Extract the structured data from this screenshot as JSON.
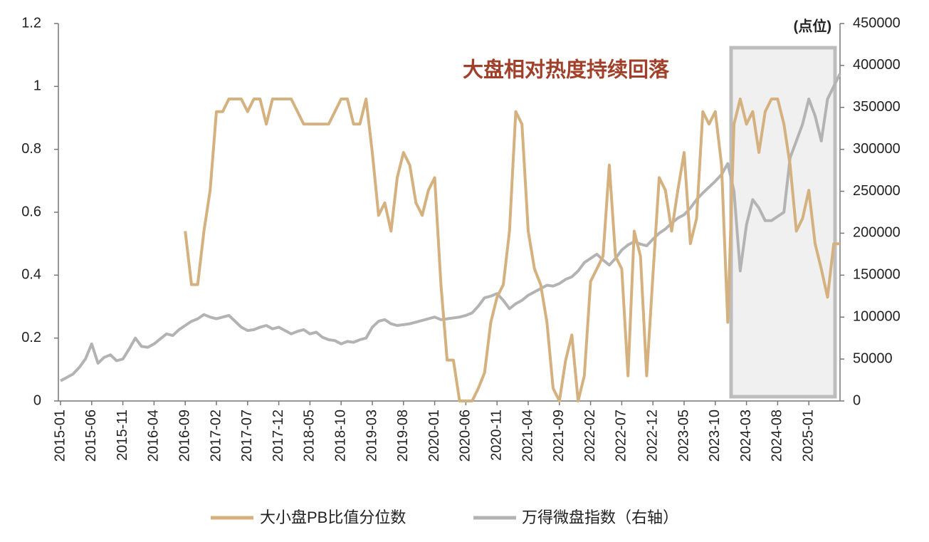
{
  "chart_data": {
    "type": "line",
    "annotation": "大盘相对热度持续回落",
    "y2_label": "(点位)",
    "x": [
      "2015-01",
      "2015-02",
      "2015-03",
      "2015-04",
      "2015-05",
      "2015-06",
      "2015-07",
      "2015-08",
      "2015-09",
      "2015-10",
      "2015-11",
      "2015-12",
      "2016-01",
      "2016-02",
      "2016-03",
      "2016-04",
      "2016-05",
      "2016-06",
      "2016-07",
      "2016-08",
      "2016-09",
      "2016-10",
      "2016-11",
      "2016-12",
      "2017-01",
      "2017-02",
      "2017-03",
      "2017-04",
      "2017-05",
      "2017-06",
      "2017-07",
      "2017-08",
      "2017-09",
      "2017-10",
      "2017-11",
      "2017-12",
      "2018-01",
      "2018-02",
      "2018-03",
      "2018-04",
      "2018-05",
      "2018-06",
      "2018-07",
      "2018-08",
      "2018-09",
      "2018-10",
      "2018-11",
      "2018-12",
      "2019-01",
      "2019-02",
      "2019-03",
      "2019-04",
      "2019-05",
      "2019-06",
      "2019-07",
      "2019-08",
      "2019-09",
      "2019-10",
      "2019-11",
      "2019-12",
      "2020-01",
      "2020-02",
      "2020-03",
      "2020-04",
      "2020-05",
      "2020-06",
      "2020-07",
      "2020-08",
      "2020-09",
      "2020-10",
      "2020-11",
      "2020-12",
      "2021-01",
      "2021-02",
      "2021-03",
      "2021-04",
      "2021-05",
      "2021-06",
      "2021-07",
      "2021-08",
      "2021-09",
      "2021-10",
      "2021-11",
      "2021-12",
      "2022-01",
      "2022-02",
      "2022-03",
      "2022-04",
      "2022-05",
      "2022-06",
      "2022-07",
      "2022-08",
      "2022-09",
      "2022-10",
      "2022-11",
      "2022-12",
      "2023-01",
      "2023-02",
      "2023-03",
      "2023-04",
      "2023-05",
      "2023-06",
      "2023-07",
      "2023-08",
      "2023-09",
      "2023-10",
      "2023-11",
      "2023-12",
      "2024-01",
      "2024-02",
      "2024-03",
      "2024-04",
      "2024-05",
      "2024-06",
      "2024-07",
      "2024-08",
      "2024-09",
      "2024-10",
      "2024-11",
      "2024-12",
      "2025-01",
      "2025-02",
      "2025-03",
      "2025-04",
      "2025-05",
      "2025-06"
    ],
    "xticks": [
      "2015-01",
      "2015-06",
      "2015-11",
      "2016-04",
      "2016-09",
      "2017-02",
      "2017-07",
      "2017-12",
      "2018-05",
      "2018-10",
      "2019-03",
      "2019-08",
      "2020-01",
      "2020-06",
      "2020-11",
      "2021-04",
      "2021-09",
      "2022-02",
      "2022-07",
      "2022-12",
      "2023-05",
      "2023-10",
      "2024-03",
      "2024-08",
      "2025-01"
    ],
    "ylim": [
      0,
      1.2
    ],
    "yticks": [
      0,
      0.2,
      0.4,
      0.6,
      0.8,
      1,
      1.2
    ],
    "y2lim": [
      0,
      450000
    ],
    "y2ticks": [
      0,
      50000,
      100000,
      150000,
      200000,
      250000,
      300000,
      350000,
      400000,
      450000
    ],
    "series": [
      {
        "name": "大小盘PB比值分位数",
        "color": "#d4b17f",
        "values": [
          null,
          null,
          null,
          null,
          null,
          null,
          null,
          null,
          null,
          null,
          null,
          null,
          null,
          null,
          null,
          null,
          null,
          null,
          null,
          null,
          0.54,
          0.37,
          0.37,
          0.54,
          0.67,
          0.92,
          0.92,
          0.96,
          0.96,
          0.96,
          0.92,
          0.96,
          0.96,
          0.88,
          0.96,
          0.96,
          0.96,
          0.96,
          0.92,
          0.88,
          0.88,
          0.88,
          0.88,
          0.88,
          0.92,
          0.96,
          0.96,
          0.88,
          0.88,
          0.96,
          0.79,
          0.59,
          0.63,
          0.54,
          0.71,
          0.79,
          0.75,
          0.63,
          0.59,
          0.67,
          0.71,
          0.37,
          0.13,
          0.13,
          0,
          0,
          0,
          0.04,
          0.09,
          0.25,
          0.33,
          0.37,
          0.54,
          0.92,
          0.88,
          0.54,
          0.42,
          0.37,
          0.25,
          0.04,
          0,
          0.13,
          0.21,
          0,
          0.08,
          0.38,
          0.42,
          0.46,
          0.75,
          0.46,
          0.42,
          0.08,
          0.54,
          0.46,
          0.08,
          0.4,
          0.71,
          0.67,
          0.54,
          0.67,
          0.79,
          0.5,
          0.58,
          0.92,
          0.88,
          0.92,
          0.75,
          0.25,
          0.88,
          0.96,
          0.88,
          0.92,
          0.79,
          0.92,
          0.96,
          0.96,
          0.88,
          0.75,
          0.54,
          0.58,
          0.67,
          0.5,
          0.42,
          0.33,
          0.5,
          0.5
        ]
      },
      {
        "name": "万得微盘指数（右轴）",
        "color": "#b3b3b3",
        "axis": "y2",
        "values": [
          24000,
          28000,
          32000,
          40000,
          50000,
          68000,
          45000,
          52000,
          55000,
          48000,
          50000,
          62000,
          75000,
          65000,
          64000,
          68000,
          74000,
          80000,
          78000,
          85000,
          90000,
          95000,
          98000,
          103000,
          100000,
          98000,
          100000,
          102000,
          95000,
          88000,
          84000,
          85000,
          88000,
          90000,
          86000,
          88000,
          84000,
          80000,
          83000,
          85000,
          80000,
          82000,
          76000,
          73000,
          72000,
          68000,
          71000,
          70000,
          73000,
          75000,
          88000,
          95000,
          97000,
          92000,
          90000,
          91000,
          92000,
          94000,
          96000,
          98000,
          100000,
          97000,
          98000,
          99000,
          100000,
          102000,
          105000,
          113000,
          123000,
          125000,
          128000,
          120000,
          110000,
          116000,
          120000,
          126000,
          130000,
          134000,
          138000,
          137000,
          140000,
          145000,
          148000,
          155000,
          165000,
          170000,
          175000,
          168000,
          162000,
          170000,
          180000,
          186000,
          190000,
          187000,
          185000,
          193000,
          200000,
          205000,
          212000,
          218000,
          222000,
          230000,
          240000,
          248000,
          255000,
          262000,
          270000,
          283000,
          250000,
          155000,
          210000,
          240000,
          230000,
          215000,
          215000,
          220000,
          225000,
          290000,
          310000,
          330000,
          360000,
          340000,
          310000,
          360000,
          375000,
          390000
        ]
      }
    ]
  }
}
